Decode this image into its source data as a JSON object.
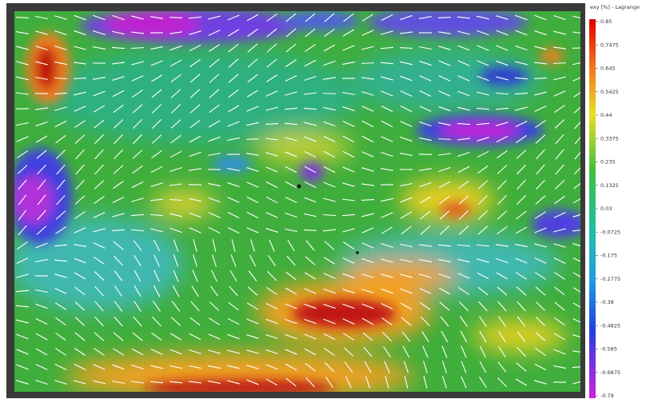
{
  "colorbar": {
    "title": "exy [%] - Lagrange",
    "ticks": [
      0.85,
      0.7475,
      0.645,
      0.5425,
      0.44,
      0.3375,
      0.235,
      0.1325,
      0.03,
      -0.0725,
      -0.175,
      -0.2775,
      -0.38,
      -0.4825,
      -0.585,
      -0.6875,
      -0.79
    ]
  }
}
